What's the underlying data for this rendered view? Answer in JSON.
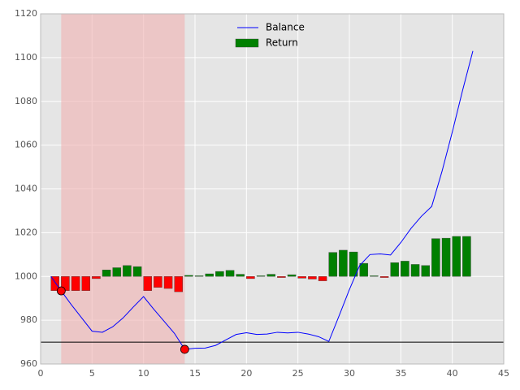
{
  "chart_data": {
    "type": "bar-line",
    "xlim": [
      0,
      45
    ],
    "xticks": [
      0,
      5,
      10,
      15,
      20,
      25,
      30,
      35,
      40,
      45
    ],
    "ylim": [
      960,
      1120
    ],
    "yticks": [
      960,
      980,
      1000,
      1020,
      1040,
      1060,
      1080,
      1100,
      1120
    ],
    "grid": true,
    "legend": "upper center",
    "baseline": 1000,
    "span": {
      "x": [
        2,
        14
      ],
      "color": "#f0b0b0"
    },
    "hline": {
      "value": 970,
      "color": "#000"
    },
    "markers": {
      "x": [
        2,
        14
      ],
      "values": [
        993.4,
        966.7
      ],
      "color": "red"
    },
    "series": [
      {
        "name": "Balance",
        "type": "line",
        "color": "blue",
        "x": [
          1,
          2,
          3,
          4,
          5,
          6,
          7,
          8,
          9,
          10,
          11,
          12,
          13,
          14,
          15,
          16,
          17,
          18,
          19,
          20,
          21,
          22,
          23,
          24,
          25,
          26,
          27,
          28,
          29,
          30,
          31,
          32,
          33,
          34,
          35,
          36,
          37,
          38,
          39,
          40,
          41,
          42
        ],
        "values": [
          1000,
          993.4,
          987,
          981,
          975,
          974.5,
          977,
          981,
          986,
          990.8,
          985,
          979.5,
          974,
          966.7,
          967.2,
          967.3,
          968.5,
          971,
          973.5,
          974.3,
          973.5,
          973.7,
          974.5,
          974.2,
          974.5,
          973.7,
          972.5,
          970.3,
          982,
          994,
          1005,
          1010,
          1010.3,
          1009.8,
          1015.5,
          1022,
          1027.5,
          1032,
          1048,
          1066,
          1085,
          1103
        ]
      },
      {
        "name": "Return",
        "type": "bar",
        "color": "green",
        "negative_color": "red",
        "x": [
          1,
          2,
          3,
          4,
          5,
          6,
          7,
          8,
          9,
          10,
          11,
          12,
          13,
          14,
          15,
          16,
          17,
          18,
          19,
          20,
          21,
          22,
          23,
          24,
          25,
          26,
          27,
          28,
          29,
          30,
          31,
          32,
          33,
          34,
          35,
          36,
          37,
          38,
          39,
          40,
          41
        ],
        "values": [
          -6.5,
          -6.5,
          -6.5,
          -6.5,
          -1,
          3,
          4,
          5,
          4.5,
          -6.5,
          -5,
          -5.5,
          -7,
          0.5,
          0.3,
          1.2,
          2.3,
          2.8,
          1,
          -1,
          0.3,
          1,
          -0.5,
          0.8,
          -0.8,
          -1.2,
          -2,
          11,
          12,
          11.2,
          6,
          0.3,
          -0.5,
          6.3,
          7,
          5.5,
          5,
          17.3,
          17.5,
          18.3,
          18.3
        ]
      }
    ]
  }
}
